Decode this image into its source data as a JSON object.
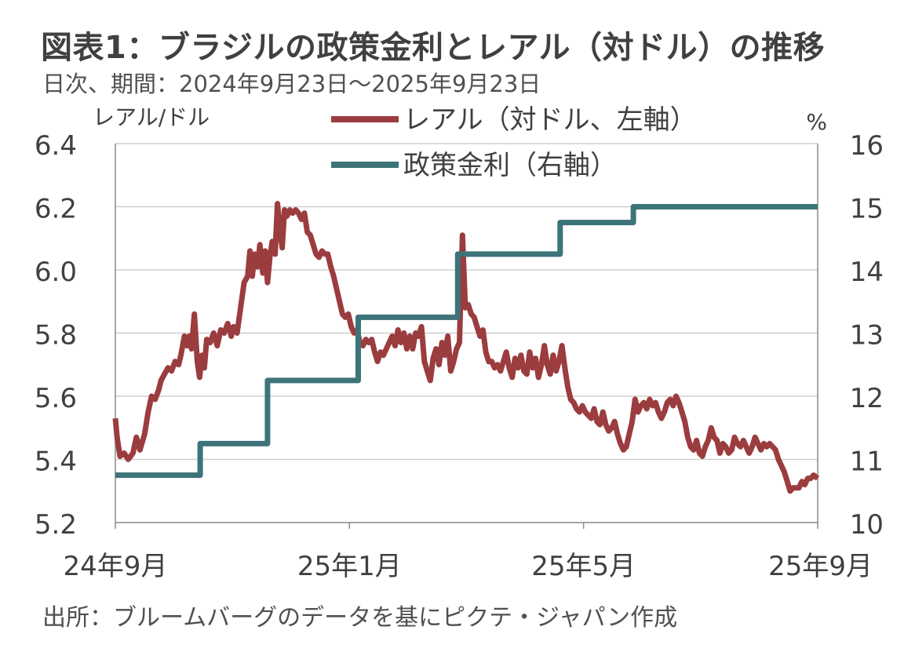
{
  "title": "図表1：ブラジルの政策金利とレアル（対ドル）の推移",
  "subtitle": "日次、期間：2024年9月23日～2025年9月23日",
  "source": "出所：ブルームバーグのデータを基にピクテ・ジャパン作成",
  "chart_data": {
    "type": "line",
    "left_axis_label": "レアル/ドル",
    "right_axis_label": "%",
    "left_axis": {
      "min": 5.2,
      "max": 6.4,
      "ticks": [
        "5.2",
        "5.4",
        "5.6",
        "5.8",
        "6.0",
        "6.2",
        "6.4"
      ]
    },
    "right_axis": {
      "min": 10,
      "max": 16,
      "ticks": [
        "10",
        "11",
        "12",
        "13",
        "14",
        "15",
        "16"
      ]
    },
    "x_range_months": [
      0,
      12
    ],
    "x_ticks": [
      {
        "month": 0,
        "label": "24年9月"
      },
      {
        "month": 4,
        "label": "25年1月"
      },
      {
        "month": 8,
        "label": "25年5月"
      },
      {
        "month": 12,
        "label": "25年9月"
      }
    ],
    "grid": "horizontal",
    "legend": "top-center",
    "series": [
      {
        "name": "レアル（対ドル、左軸）",
        "axis": "left",
        "color": "#9b3c3f",
        "points": [
          [
            0.0,
            5.53
          ],
          [
            0.03,
            5.47
          ],
          [
            0.08,
            5.41
          ],
          [
            0.15,
            5.42
          ],
          [
            0.22,
            5.4
          ],
          [
            0.3,
            5.42
          ],
          [
            0.36,
            5.47
          ],
          [
            0.42,
            5.43
          ],
          [
            0.5,
            5.48
          ],
          [
            0.56,
            5.55
          ],
          [
            0.62,
            5.6
          ],
          [
            0.68,
            5.59
          ],
          [
            0.74,
            5.62
          ],
          [
            0.78,
            5.65
          ],
          [
            0.84,
            5.67
          ],
          [
            0.9,
            5.69
          ],
          [
            0.96,
            5.68
          ],
          [
            1.02,
            5.71
          ],
          [
            1.08,
            5.7
          ],
          [
            1.12,
            5.73
          ],
          [
            1.18,
            5.79
          ],
          [
            1.22,
            5.76
          ],
          [
            1.26,
            5.79
          ],
          [
            1.3,
            5.75
          ],
          [
            1.35,
            5.86
          ],
          [
            1.4,
            5.71
          ],
          [
            1.44,
            5.66
          ],
          [
            1.48,
            5.73
          ],
          [
            1.52,
            5.69
          ],
          [
            1.56,
            5.78
          ],
          [
            1.62,
            5.77
          ],
          [
            1.68,
            5.8
          ],
          [
            1.74,
            5.76
          ],
          [
            1.8,
            5.81
          ],
          [
            1.86,
            5.8
          ],
          [
            1.92,
            5.83
          ],
          [
            1.98,
            5.79
          ],
          [
            2.02,
            5.82
          ],
          [
            2.08,
            5.8
          ],
          [
            2.14,
            5.88
          ],
          [
            2.2,
            5.96
          ],
          [
            2.26,
            5.98
          ],
          [
            2.3,
            6.06
          ],
          [
            2.34,
            5.98
          ],
          [
            2.38,
            6.05
          ],
          [
            2.43,
            6.01
          ],
          [
            2.47,
            6.08
          ],
          [
            2.52,
            5.99
          ],
          [
            2.56,
            6.06
          ],
          [
            2.6,
            5.96
          ],
          [
            2.64,
            6.04
          ],
          [
            2.68,
            6.09
          ],
          [
            2.73,
            6.05
          ],
          [
            2.77,
            6.21
          ],
          [
            2.81,
            6.13
          ],
          [
            2.85,
            6.07
          ],
          [
            2.89,
            6.19
          ],
          [
            2.93,
            6.17
          ],
          [
            2.98,
            6.19
          ],
          [
            3.03,
            6.18
          ],
          [
            3.08,
            6.19
          ],
          [
            3.13,
            6.18
          ],
          [
            3.18,
            6.16
          ],
          [
            3.23,
            6.18
          ],
          [
            3.28,
            6.12
          ],
          [
            3.33,
            6.11
          ],
          [
            3.38,
            6.08
          ],
          [
            3.43,
            6.05
          ],
          [
            3.48,
            6.04
          ],
          [
            3.53,
            6.06
          ],
          [
            3.58,
            6.05
          ],
          [
            3.63,
            6.05
          ],
          [
            3.68,
            6.01
          ],
          [
            3.73,
            5.98
          ],
          [
            3.78,
            5.94
          ],
          [
            3.83,
            5.9
          ],
          [
            3.88,
            5.86
          ],
          [
            3.93,
            5.85
          ],
          [
            3.98,
            5.86
          ],
          [
            4.03,
            5.82
          ],
          [
            4.08,
            5.8
          ],
          [
            4.13,
            5.81
          ],
          [
            4.18,
            5.77
          ],
          [
            4.23,
            5.76
          ],
          [
            4.28,
            5.78
          ],
          [
            4.33,
            5.77
          ],
          [
            4.38,
            5.78
          ],
          [
            4.43,
            5.74
          ],
          [
            4.48,
            5.71
          ],
          [
            4.53,
            5.74
          ],
          [
            4.58,
            5.73
          ],
          [
            4.63,
            5.75
          ],
          [
            4.68,
            5.77
          ],
          [
            4.73,
            5.79
          ],
          [
            4.78,
            5.76
          ],
          [
            4.83,
            5.81
          ],
          [
            4.88,
            5.77
          ],
          [
            4.93,
            5.8
          ],
          [
            4.98,
            5.75
          ],
          [
            5.03,
            5.79
          ],
          [
            5.08,
            5.75
          ],
          [
            5.13,
            5.8
          ],
          [
            5.18,
            5.79
          ],
          [
            5.23,
            5.82
          ],
          [
            5.28,
            5.71
          ],
          [
            5.33,
            5.68
          ],
          [
            5.38,
            5.65
          ],
          [
            5.43,
            5.72
          ],
          [
            5.48,
            5.75
          ],
          [
            5.53,
            5.7
          ],
          [
            5.58,
            5.77
          ],
          [
            5.63,
            5.73
          ],
          [
            5.68,
            5.79
          ],
          [
            5.73,
            5.68
          ],
          [
            5.78,
            5.71
          ],
          [
            5.83,
            5.75
          ],
          [
            5.88,
            5.77
          ],
          [
            5.93,
            6.11
          ],
          [
            5.98,
            5.88
          ],
          [
            6.03,
            5.89
          ],
          [
            6.08,
            5.86
          ],
          [
            6.13,
            5.85
          ],
          [
            6.18,
            5.82
          ],
          [
            6.23,
            5.79
          ],
          [
            6.28,
            5.81
          ],
          [
            6.33,
            5.74
          ],
          [
            6.38,
            5.71
          ],
          [
            6.43,
            5.71
          ],
          [
            6.48,
            5.69
          ],
          [
            6.53,
            5.7
          ],
          [
            6.58,
            5.68
          ],
          [
            6.63,
            5.71
          ],
          [
            6.68,
            5.74
          ],
          [
            6.73,
            5.69
          ],
          [
            6.78,
            5.66
          ],
          [
            6.83,
            5.72
          ],
          [
            6.88,
            5.69
          ],
          [
            6.93,
            5.73
          ],
          [
            6.98,
            5.68
          ],
          [
            7.03,
            5.67
          ],
          [
            7.08,
            5.74
          ],
          [
            7.13,
            5.69
          ],
          [
            7.18,
            5.72
          ],
          [
            7.23,
            5.66
          ],
          [
            7.28,
            5.7
          ],
          [
            7.33,
            5.76
          ],
          [
            7.38,
            5.7
          ],
          [
            7.43,
            5.67
          ],
          [
            7.48,
            5.73
          ],
          [
            7.53,
            5.68
          ],
          [
            7.58,
            5.71
          ],
          [
            7.63,
            5.76
          ],
          [
            7.68,
            5.69
          ],
          [
            7.73,
            5.63
          ],
          [
            7.78,
            5.59
          ],
          [
            7.83,
            5.58
          ],
          [
            7.88,
            5.56
          ],
          [
            7.93,
            5.55
          ],
          [
            7.98,
            5.57
          ],
          [
            8.03,
            5.55
          ],
          [
            8.08,
            5.54
          ],
          [
            8.13,
            5.53
          ],
          [
            8.18,
            5.56
          ],
          [
            8.23,
            5.52
          ],
          [
            8.28,
            5.51
          ],
          [
            8.33,
            5.55
          ],
          [
            8.38,
            5.51
          ],
          [
            8.43,
            5.49
          ],
          [
            8.48,
            5.5
          ],
          [
            8.53,
            5.52
          ],
          [
            8.58,
            5.48
          ],
          [
            8.63,
            5.45
          ],
          [
            8.68,
            5.43
          ],
          [
            8.73,
            5.44
          ],
          [
            8.78,
            5.48
          ],
          [
            8.83,
            5.52
          ],
          [
            8.88,
            5.59
          ],
          [
            8.93,
            5.55
          ],
          [
            8.98,
            5.57
          ],
          [
            9.03,
            5.58
          ],
          [
            9.08,
            5.56
          ],
          [
            9.13,
            5.59
          ],
          [
            9.18,
            5.57
          ],
          [
            9.23,
            5.58
          ],
          [
            9.28,
            5.55
          ],
          [
            9.33,
            5.53
          ],
          [
            9.38,
            5.55
          ],
          [
            9.43,
            5.58
          ],
          [
            9.48,
            5.59
          ],
          [
            9.53,
            5.57
          ],
          [
            9.58,
            5.6
          ],
          [
            9.63,
            5.58
          ],
          [
            9.68,
            5.55
          ],
          [
            9.73,
            5.52
          ],
          [
            9.78,
            5.47
          ],
          [
            9.83,
            5.44
          ],
          [
            9.88,
            5.43
          ],
          [
            9.93,
            5.46
          ],
          [
            9.98,
            5.42
          ],
          [
            10.03,
            5.41
          ],
          [
            10.08,
            5.44
          ],
          [
            10.13,
            5.46
          ],
          [
            10.18,
            5.5
          ],
          [
            10.23,
            5.47
          ],
          [
            10.28,
            5.46
          ],
          [
            10.33,
            5.42
          ],
          [
            10.38,
            5.45
          ],
          [
            10.43,
            5.44
          ],
          [
            10.48,
            5.42
          ],
          [
            10.53,
            5.43
          ],
          [
            10.58,
            5.47
          ],
          [
            10.63,
            5.45
          ],
          [
            10.68,
            5.44
          ],
          [
            10.73,
            5.46
          ],
          [
            10.78,
            5.44
          ],
          [
            10.83,
            5.42
          ],
          [
            10.88,
            5.44
          ],
          [
            10.93,
            5.47
          ],
          [
            10.98,
            5.45
          ],
          [
            11.03,
            5.43
          ],
          [
            11.08,
            5.45
          ],
          [
            11.13,
            5.44
          ],
          [
            11.18,
            5.45
          ],
          [
            11.23,
            5.44
          ],
          [
            11.28,
            5.43
          ],
          [
            11.33,
            5.4
          ],
          [
            11.38,
            5.38
          ],
          [
            11.43,
            5.36
          ],
          [
            11.48,
            5.33
          ],
          [
            11.53,
            5.3
          ],
          [
            11.58,
            5.31
          ],
          [
            11.63,
            5.31
          ],
          [
            11.68,
            5.31
          ],
          [
            11.73,
            5.33
          ],
          [
            11.78,
            5.32
          ],
          [
            11.83,
            5.34
          ],
          [
            11.88,
            5.34
          ],
          [
            11.93,
            5.35
          ],
          [
            12.0,
            5.34
          ]
        ]
      },
      {
        "name": "政策金利（右軸）",
        "axis": "right",
        "color": "#3d7479",
        "steps": [
          {
            "start": 0,
            "value": 10.75
          },
          {
            "start": 1.45,
            "value": 11.25
          },
          {
            "start": 2.6,
            "value": 12.25
          },
          {
            "start": 4.15,
            "value": 13.25
          },
          {
            "start": 5.85,
            "value": 14.25
          },
          {
            "start": 7.6,
            "value": 14.75
          },
          {
            "start": 8.85,
            "value": 15.0
          }
        ]
      }
    ]
  }
}
